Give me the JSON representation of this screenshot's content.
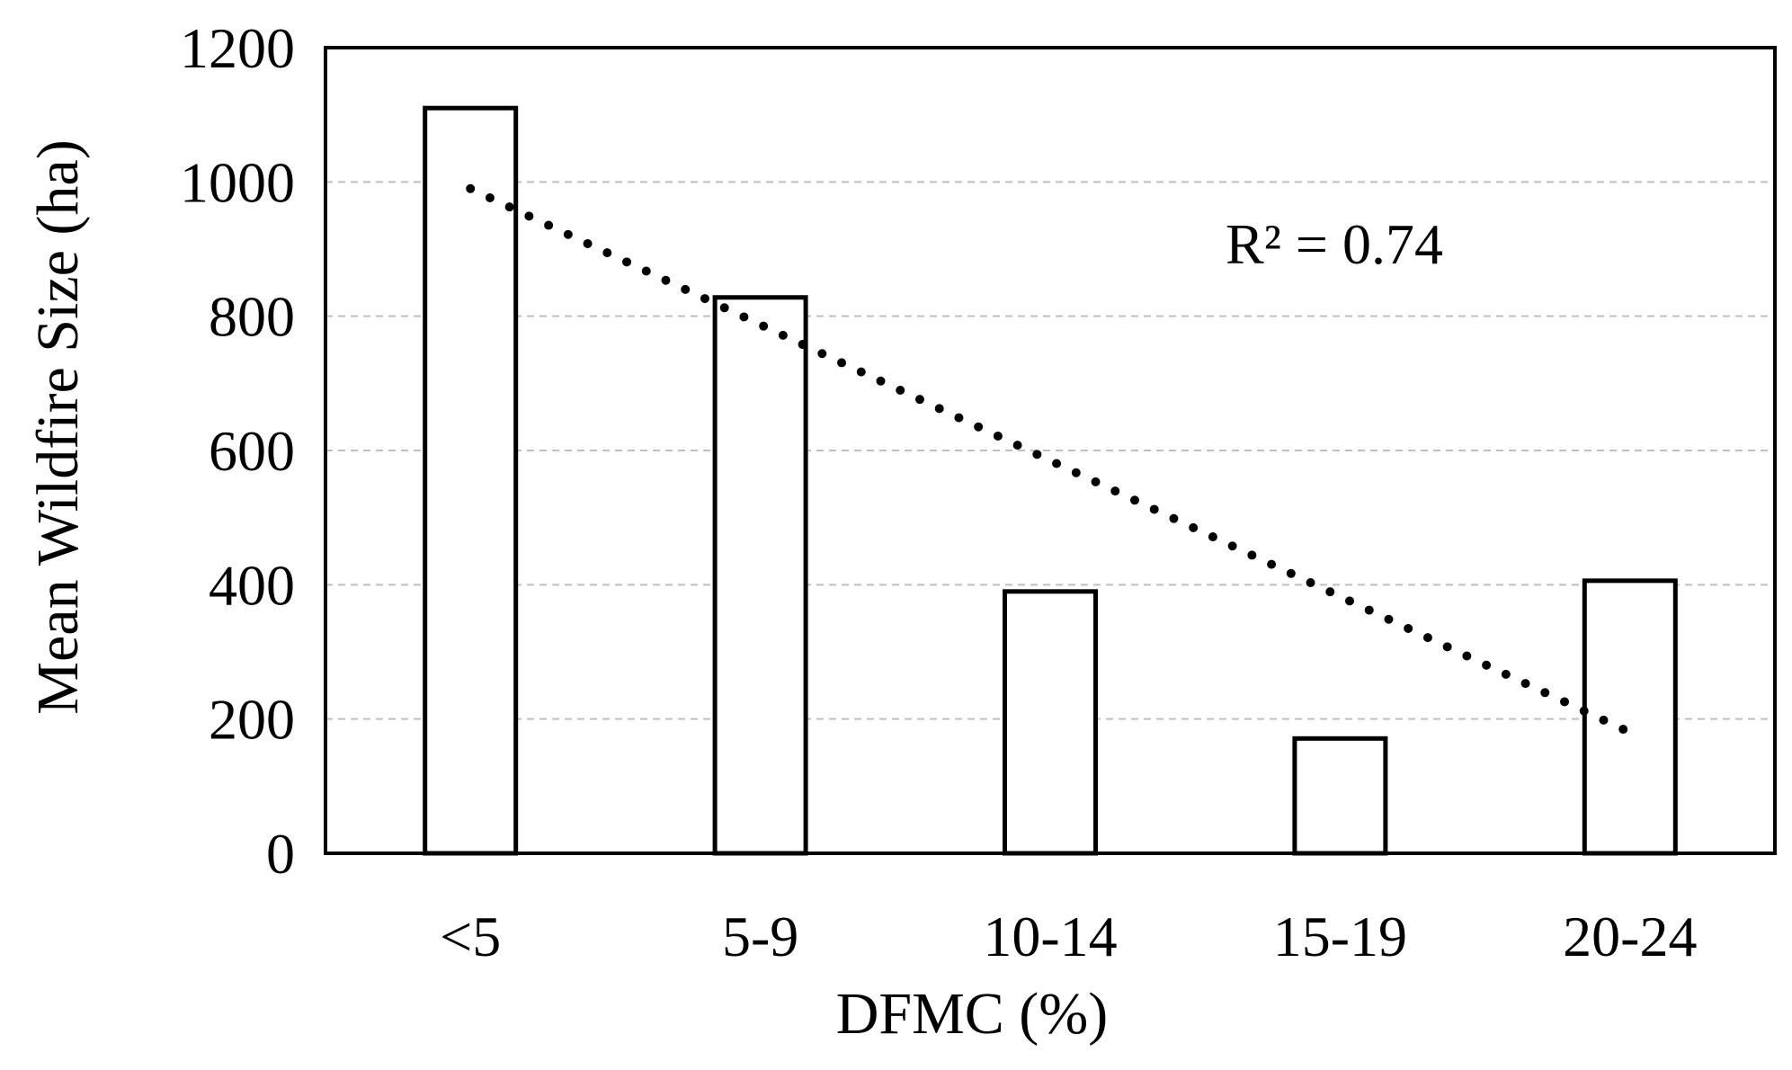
{
  "chart_data": {
    "type": "bar",
    "title": "",
    "xlabel": "DFMC (%)",
    "ylabel": "Mean Wildfire Size  (ha)",
    "categories": [
      "<5",
      "5-9",
      "10-14",
      "15-19",
      "20-24"
    ],
    "values": [
      1110,
      828,
      390,
      171,
      406
    ],
    "ylim": [
      0,
      1200
    ],
    "yticks": [
      0,
      200,
      400,
      600,
      800,
      1000,
      1200
    ],
    "grid": true,
    "trendline": {
      "style": "dotted",
      "type": "linear",
      "start": 990,
      "end": 180,
      "annotation": "R² = 0.74"
    },
    "colors": {
      "bar_fill": "#ffffff",
      "bar_stroke": "#000000",
      "grid": "#bfbfbf",
      "trend": "#000000"
    }
  }
}
